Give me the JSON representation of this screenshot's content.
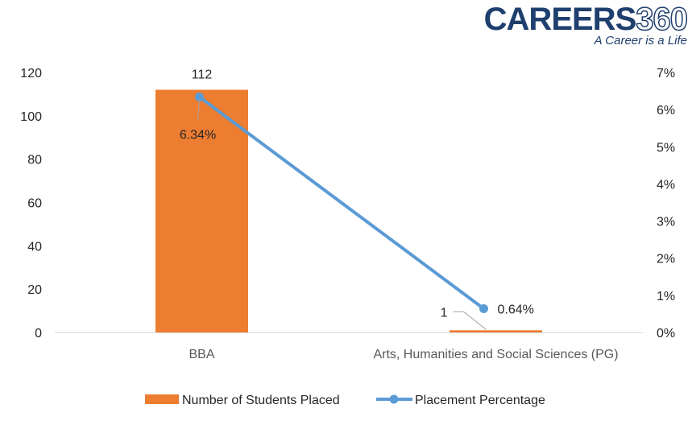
{
  "logo": {
    "word": "CAREERS",
    "number": "360",
    "tagline": "A Career is a Life"
  },
  "colors": {
    "bar": "#ed7d31",
    "line": "#5b9bd5",
    "axis": "#d9d9d9",
    "text": "#262626"
  },
  "chart_data": {
    "type": "bar",
    "title": "",
    "categories": [
      "BBA",
      "Arts, Humanities and Social Sciences (PG)"
    ],
    "series": [
      {
        "name": "Number of Students Placed",
        "type": "bar",
        "axis": "left",
        "values": [
          112,
          1
        ],
        "labels": [
          "112",
          "1"
        ]
      },
      {
        "name": "Placement Percentage",
        "type": "line",
        "axis": "right",
        "values": [
          6.34,
          0.64
        ],
        "labels": [
          "6.34%",
          "0.64%"
        ]
      }
    ],
    "y_left": {
      "ylim": [
        0,
        120
      ],
      "ticks": [
        "0",
        "20",
        "40",
        "60",
        "80",
        "100",
        "120"
      ]
    },
    "y_right": {
      "ylim": [
        0,
        7
      ],
      "ticks": [
        "0%",
        "1%",
        "2%",
        "3%",
        "4%",
        "5%",
        "6%",
        "7%"
      ]
    },
    "legend": "bottom",
    "grid": false
  }
}
